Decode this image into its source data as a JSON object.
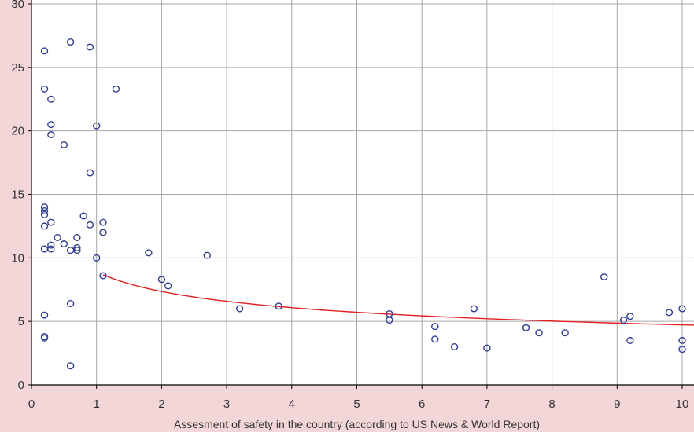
{
  "chart_data": {
    "type": "scatter",
    "title": "",
    "xlabel": "Assesment of safety in the country (according to US News & World Report)",
    "ylabel": "",
    "xlim": [
      0,
      10
    ],
    "ylim": [
      0,
      30
    ],
    "x_ticks": [
      0,
      1,
      2,
      3,
      4,
      5,
      6,
      7,
      8,
      9,
      10
    ],
    "y_ticks": [
      0,
      5,
      10,
      15,
      20,
      25,
      30
    ],
    "grid": true,
    "legend": "none",
    "series": [
      {
        "x": [
          0.2,
          0.2,
          0.2,
          0.2,
          0.2,
          0.2,
          0.2,
          0.2,
          0.2,
          0.2,
          0.3,
          0.3,
          0.3,
          0.3,
          0.3,
          0.3,
          0.4,
          0.5,
          0.5,
          0.6,
          0.6,
          0.6,
          0.6,
          0.7,
          0.7,
          0.7,
          0.8,
          0.9,
          0.9,
          0.9,
          1.0,
          1.0,
          1.1,
          1.1,
          1.1,
          1.3,
          1.8,
          2.0,
          2.1,
          2.7,
          3.2,
          3.8,
          5.5,
          5.5,
          6.2,
          6.2,
          6.5,
          6.8,
          7.0,
          7.6,
          7.8,
          8.2,
          8.8,
          9.1,
          9.2,
          9.2,
          9.8,
          10.0,
          10.0,
          10.0
        ],
        "y": [
          26.3,
          23.3,
          14.0,
          13.7,
          13.4,
          12.5,
          10.7,
          5.5,
          3.8,
          3.7,
          22.5,
          20.5,
          19.7,
          12.8,
          11.0,
          10.7,
          11.6,
          18.9,
          11.1,
          27.0,
          10.6,
          6.4,
          1.5,
          11.6,
          10.8,
          10.6,
          13.3,
          26.6,
          16.7,
          12.6,
          20.4,
          10.0,
          12.8,
          12.0,
          8.6,
          23.3,
          10.4,
          8.3,
          7.8,
          10.2,
          6.0,
          6.2,
          5.6,
          5.1,
          4.6,
          3.6,
          3.0,
          6.0,
          2.9,
          4.5,
          4.1,
          4.1,
          8.5,
          5.1,
          5.4,
          3.5,
          5.7,
          6.0,
          3.5,
          2.8
        ]
      }
    ],
    "trendline": {
      "type": "power",
      "coefficient": 8.9,
      "exponent": -0.275,
      "x_start": 1.1,
      "x_end": 10.2
    },
    "colors": {
      "background": "#f2d6d8",
      "plot_area": "#ffffff",
      "marker": "#2e3d8f",
      "trendline": "#e02020",
      "grid": "#a6a6a6"
    }
  }
}
